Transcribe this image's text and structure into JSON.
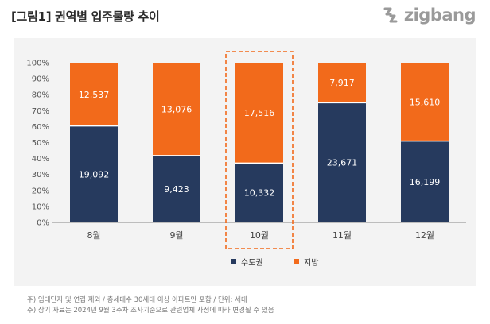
{
  "figure": {
    "title": "[그림1] 권역별 입주물량 추이"
  },
  "logo": {
    "text": "zigbang",
    "icon": "zigbang-logo-icon"
  },
  "colors": {
    "capital": "#263a5e",
    "regional": "#f26a1b",
    "highlight_border": "#f26a1b",
    "panel_bg": "#f3f3f3"
  },
  "chart_data": {
    "type": "bar",
    "stacked": true,
    "normalized": true,
    "title": "",
    "xlabel": "",
    "ylabel": "",
    "ylim": [
      0,
      100
    ],
    "yticks": [
      "0%",
      "10%",
      "20%",
      "30%",
      "40%",
      "50%",
      "60%",
      "70%",
      "80%",
      "90%",
      "100%"
    ],
    "categories": [
      "8월",
      "9월",
      "10월",
      "11월",
      "12월"
    ],
    "series": [
      {
        "name": "수도권",
        "color": "#263a5e",
        "values": [
          19092,
          9423,
          10332,
          23671,
          16199
        ],
        "labels": [
          "19,092",
          "9,423",
          "10,332",
          "23,671",
          "16,199"
        ]
      },
      {
        "name": "지방",
        "color": "#f26a1b",
        "values": [
          12537,
          13076,
          17516,
          7917,
          15610
        ],
        "labels": [
          "12,537",
          "13,076",
          "17,516",
          "7,917",
          "15,610"
        ]
      }
    ],
    "highlight_category": "10월",
    "grid": false,
    "legend_position": "bottom"
  },
  "notes": [
    "주) 임대단지 및 연립 제외 / 총세대수 30세대 이상 아파트만 포함 / 단위: 세대",
    "주) 상기 자료는 2024년 9월 3주차 조사기준으로 관련업체 사정에 따라 변경될 수 있음"
  ]
}
